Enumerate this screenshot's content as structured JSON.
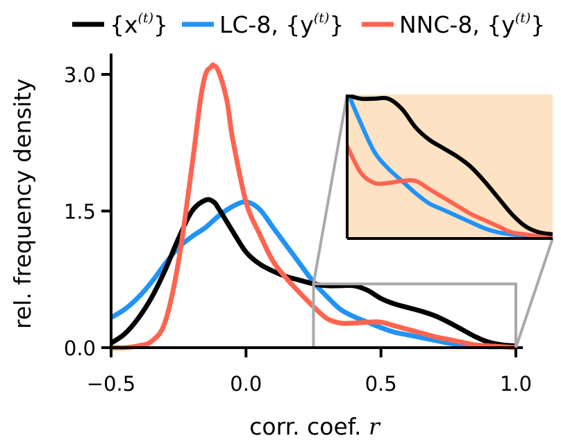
{
  "chart_data": {
    "type": "line",
    "xlabel": "corr. coef.",
    "xlabel_symbol": "r",
    "ylabel": "rel. frequency density",
    "xlim": [
      -0.5,
      1.0
    ],
    "ylim": [
      0.0,
      3.0
    ],
    "xticks": [
      "−0.5",
      "0.0",
      "0.5",
      "1.0"
    ],
    "xtick_values": [
      -0.5,
      0.0,
      0.5,
      1.0
    ],
    "yticks": [
      "0.0",
      "1.5",
      "3.0"
    ],
    "ytick_values": [
      0.0,
      1.5,
      3.0
    ],
    "grid": false,
    "legend_placement": "top, outside",
    "series": [
      {
        "legend_main": "{x",
        "legend_sup": "(t)",
        "legend_close": "}",
        "legend_bold_symbol": "x",
        "color": "#000000",
        "x": [
          -0.5,
          -0.45,
          -0.4,
          -0.35,
          -0.3,
          -0.25,
          -0.2,
          -0.15,
          -0.12,
          -0.1,
          -0.05,
          0.0,
          0.05,
          0.1,
          0.15,
          0.2,
          0.25,
          0.3,
          0.35,
          0.4,
          0.45,
          0.5,
          0.55,
          0.6,
          0.65,
          0.7,
          0.75,
          0.8,
          0.85,
          0.9,
          0.95,
          1.0
        ],
        "y": [
          0.05,
          0.15,
          0.32,
          0.55,
          0.85,
          1.2,
          1.5,
          1.62,
          1.6,
          1.52,
          1.28,
          1.05,
          0.92,
          0.84,
          0.78,
          0.74,
          0.7,
          0.68,
          0.68,
          0.68,
          0.63,
          0.54,
          0.48,
          0.44,
          0.4,
          0.35,
          0.28,
          0.2,
          0.12,
          0.06,
          0.03,
          0.02
        ]
      },
      {
        "legend_main": "LC-8, {y",
        "legend_sup": "(t)",
        "legend_close": "}",
        "color": "#2193f7",
        "x": [
          -0.5,
          -0.45,
          -0.4,
          -0.35,
          -0.3,
          -0.25,
          -0.2,
          -0.15,
          -0.1,
          -0.05,
          0.0,
          0.05,
          0.1,
          0.15,
          0.2,
          0.25,
          0.3,
          0.35,
          0.4,
          0.45,
          0.5,
          0.55,
          0.6,
          0.65,
          0.7,
          0.75,
          0.8,
          0.85,
          0.9,
          0.95,
          1.0
        ],
        "y": [
          0.33,
          0.42,
          0.55,
          0.72,
          0.92,
          1.1,
          1.22,
          1.32,
          1.45,
          1.55,
          1.6,
          1.52,
          1.32,
          1.12,
          0.92,
          0.72,
          0.56,
          0.42,
          0.34,
          0.28,
          0.22,
          0.17,
          0.14,
          0.11,
          0.08,
          0.05,
          0.03,
          0.02,
          0.01,
          0.01,
          0.0
        ]
      },
      {
        "legend_main": "NNC-8, {y",
        "legend_sup": "(t)",
        "legend_close": "}",
        "color": "#ff6450",
        "x": [
          -0.5,
          -0.45,
          -0.4,
          -0.35,
          -0.3,
          -0.25,
          -0.2,
          -0.17,
          -0.15,
          -0.13,
          -0.12,
          -0.1,
          -0.07,
          -0.05,
          0.0,
          0.05,
          0.1,
          0.15,
          0.2,
          0.25,
          0.3,
          0.35,
          0.4,
          0.45,
          0.5,
          0.55,
          0.6,
          0.65,
          0.7,
          0.75,
          0.8,
          0.85,
          0.9,
          0.95,
          1.0
        ],
        "y": [
          0.0,
          0.0,
          0.02,
          0.07,
          0.28,
          0.95,
          2.0,
          2.7,
          3.0,
          3.08,
          3.1,
          3.02,
          2.7,
          2.3,
          1.6,
          1.25,
          0.95,
          0.76,
          0.6,
          0.45,
          0.32,
          0.27,
          0.27,
          0.28,
          0.28,
          0.24,
          0.2,
          0.16,
          0.12,
          0.09,
          0.06,
          0.03,
          0.02,
          0.01,
          0.0
        ]
      }
    ],
    "inset": {
      "xlim": [
        0.25,
        1.0
      ],
      "ylim": [
        0.0,
        0.7
      ],
      "background": "#fde2c4",
      "zoom_box_color": "#a9a9a9"
    }
  }
}
